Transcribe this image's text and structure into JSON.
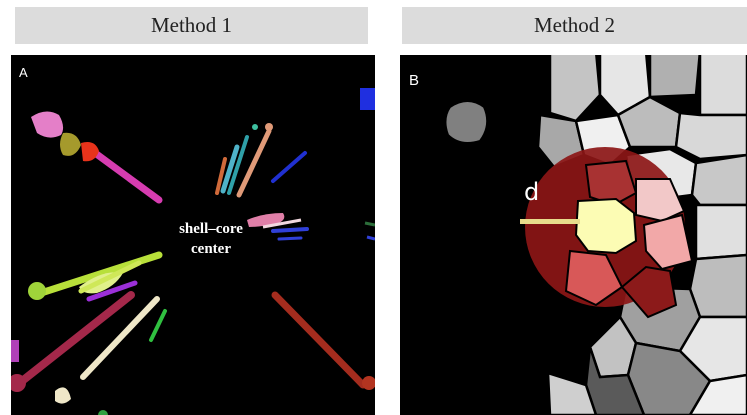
{
  "headers": {
    "method1": "Method 1",
    "method2": "Method 2"
  },
  "panelA": {
    "label": "A",
    "center_line1": "shell–core",
    "center_line2": "center"
  },
  "panelB": {
    "label": "B",
    "distance_label": "d"
  },
  "colors": {
    "panel_background": "#000000",
    "header_background": "#dcdcdc",
    "highlight_circle": "#9b1c1c",
    "center_cell": "#fcfcb4",
    "distance_line": "#e8dc8c"
  }
}
